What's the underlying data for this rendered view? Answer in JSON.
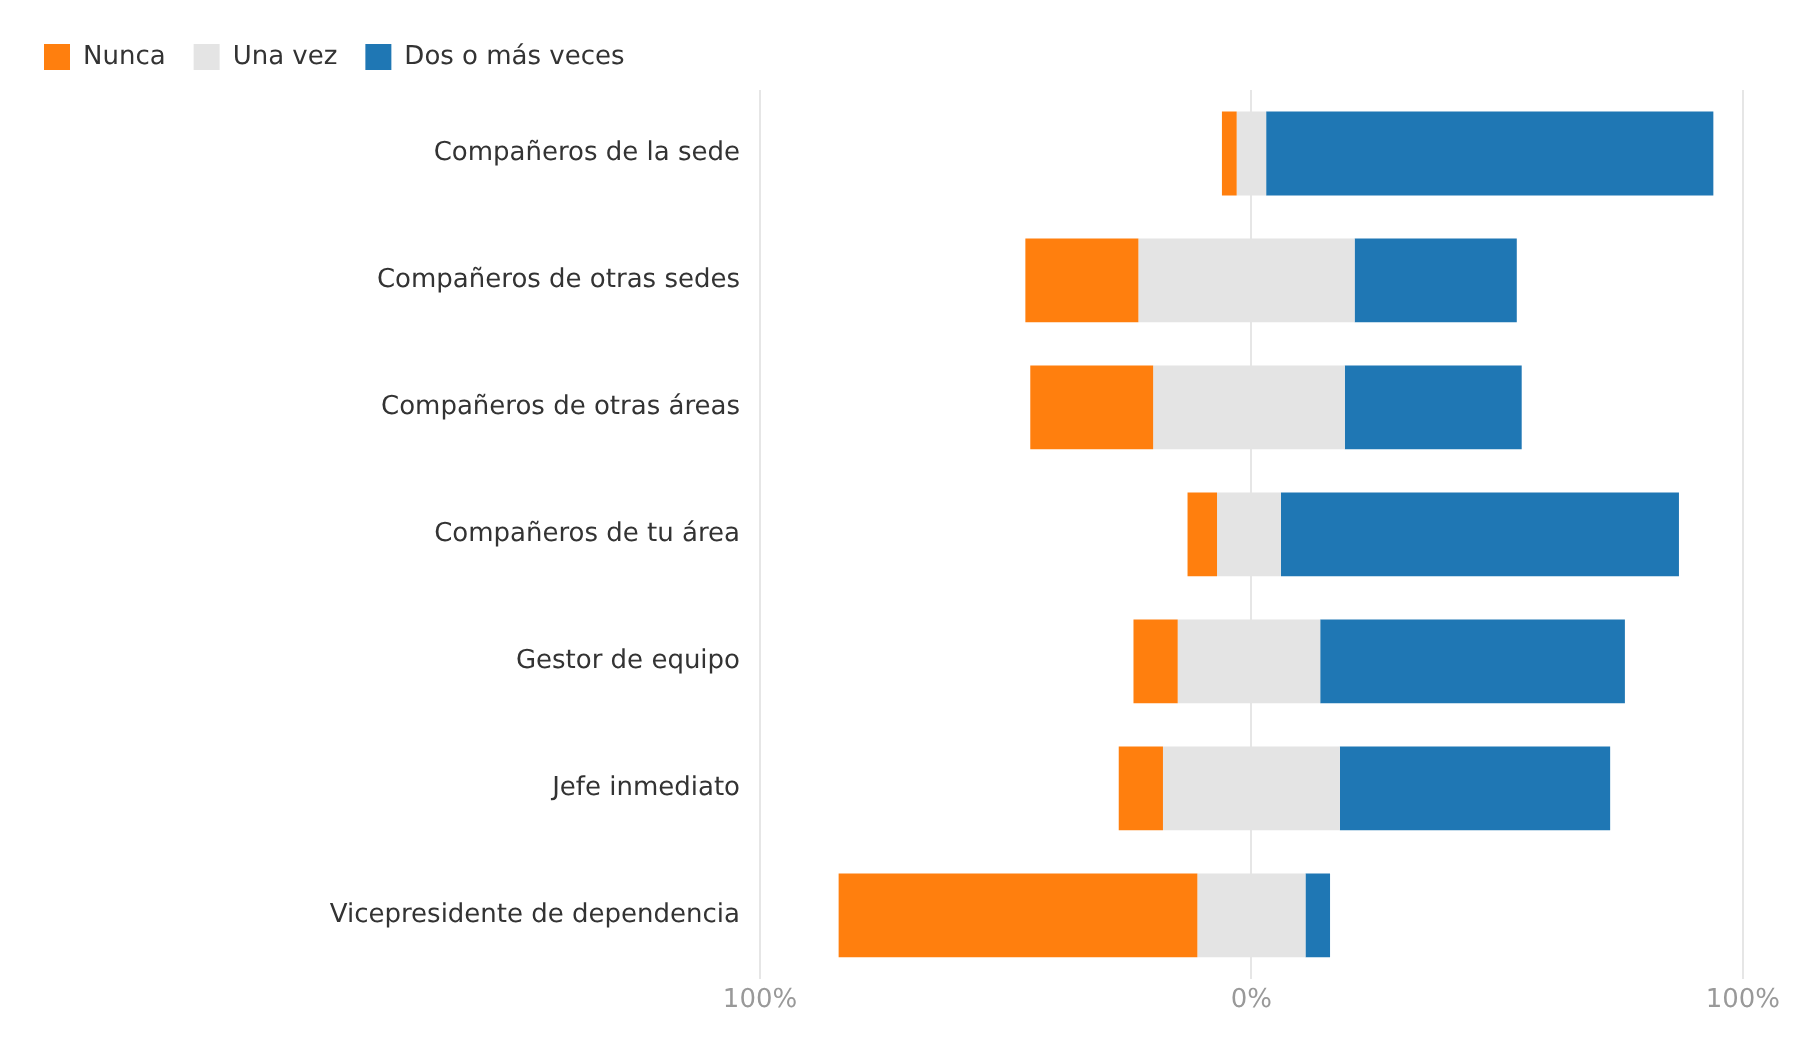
{
  "chart_data": {
    "type": "bar",
    "orientation": "horizontal",
    "categories": [
      "Compañeros de la sede",
      "Compañeros de otras sedes",
      "Compañeros de otras áreas",
      "Compañeros de tu área",
      "Gestor de equipo",
      "Jefe inmediato",
      "Vicepresidente de dependencia"
    ],
    "series": [
      {
        "name": "Nunca",
        "color": "#ff7f0e",
        "base": [
          -6,
          -46,
          -45,
          -13,
          -24,
          -27,
          -84
        ],
        "values": [
          3,
          23,
          25,
          6,
          9,
          9,
          73
        ]
      },
      {
        "name": "Una vez",
        "color": "#e4e4e4",
        "base": [
          -3,
          -23,
          -20,
          -7,
          -15,
          -18,
          -11
        ],
        "values": [
          6,
          44,
          39,
          13,
          29,
          36,
          22
        ]
      },
      {
        "name": "Dos o más veces",
        "color": "#1f77b4",
        "base": [
          3,
          21,
          19,
          6,
          14,
          18,
          11
        ],
        "values": [
          91,
          33,
          36,
          81,
          62,
          55,
          5
        ]
      }
    ],
    "xlim": [
      -100,
      100
    ],
    "xticks": [
      {
        "value": -100,
        "label": "100%"
      },
      {
        "value": 0,
        "label": "0%"
      },
      {
        "value": 100,
        "label": "100%"
      }
    ],
    "grid": "x",
    "legend": "top left"
  }
}
